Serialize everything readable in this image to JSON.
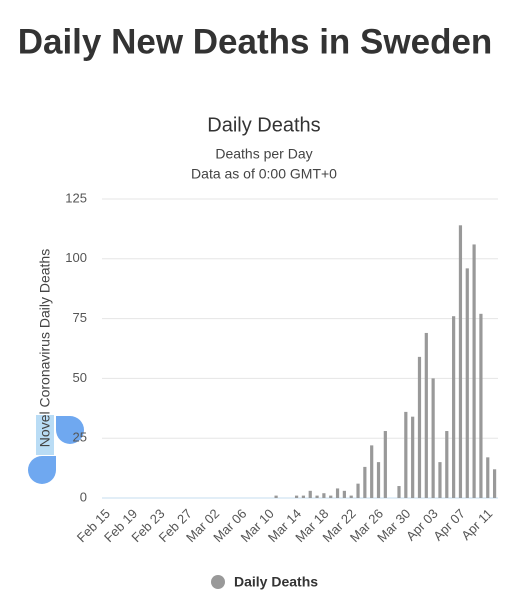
{
  "heading": "Daily New Deaths in Sweden",
  "chart_data": {
    "type": "bar",
    "title": "Daily Deaths",
    "subtitle": "Deaths per Day",
    "note": "Data as of 0:00 GMT+0",
    "y_label": "Novel Coronavirus Daily Deaths",
    "categories": [
      "Feb 15",
      null,
      null,
      null,
      "Feb 19",
      null,
      null,
      null,
      "Feb 23",
      null,
      null,
      null,
      "Feb 27",
      null,
      null,
      null,
      "Mar 02",
      null,
      null,
      null,
      "Mar 06",
      null,
      null,
      null,
      "Mar 10",
      null,
      null,
      null,
      "Mar 14",
      null,
      null,
      null,
      "Mar 18",
      null,
      null,
      null,
      "Mar 22",
      null,
      null,
      null,
      "Mar 26",
      null,
      null,
      null,
      "Mar 30",
      null,
      null,
      null,
      "Apr 03",
      null,
      null,
      null,
      "Apr 07",
      null,
      null,
      null,
      "Apr 11",
      null
    ],
    "series": [
      {
        "name": "Daily Deaths",
        "color": "#999999",
        "values": [
          0,
          0,
          0,
          0,
          0,
          0,
          0,
          0,
          0,
          0,
          0,
          0,
          0,
          0,
          0,
          0,
          0,
          0,
          0,
          0,
          0,
          0,
          0,
          0,
          0,
          1,
          0,
          0,
          1,
          1,
          3,
          1,
          2,
          1,
          4,
          3,
          1,
          6,
          13,
          22,
          15,
          28,
          0,
          5,
          36,
          34,
          59,
          69,
          50,
          15,
          28,
          76,
          114,
          96,
          106,
          77,
          17,
          12
        ]
      }
    ],
    "ylim": [
      0,
      125
    ],
    "yticks": [
      0,
      25,
      50,
      75,
      100,
      125
    ],
    "grid": true
  }
}
